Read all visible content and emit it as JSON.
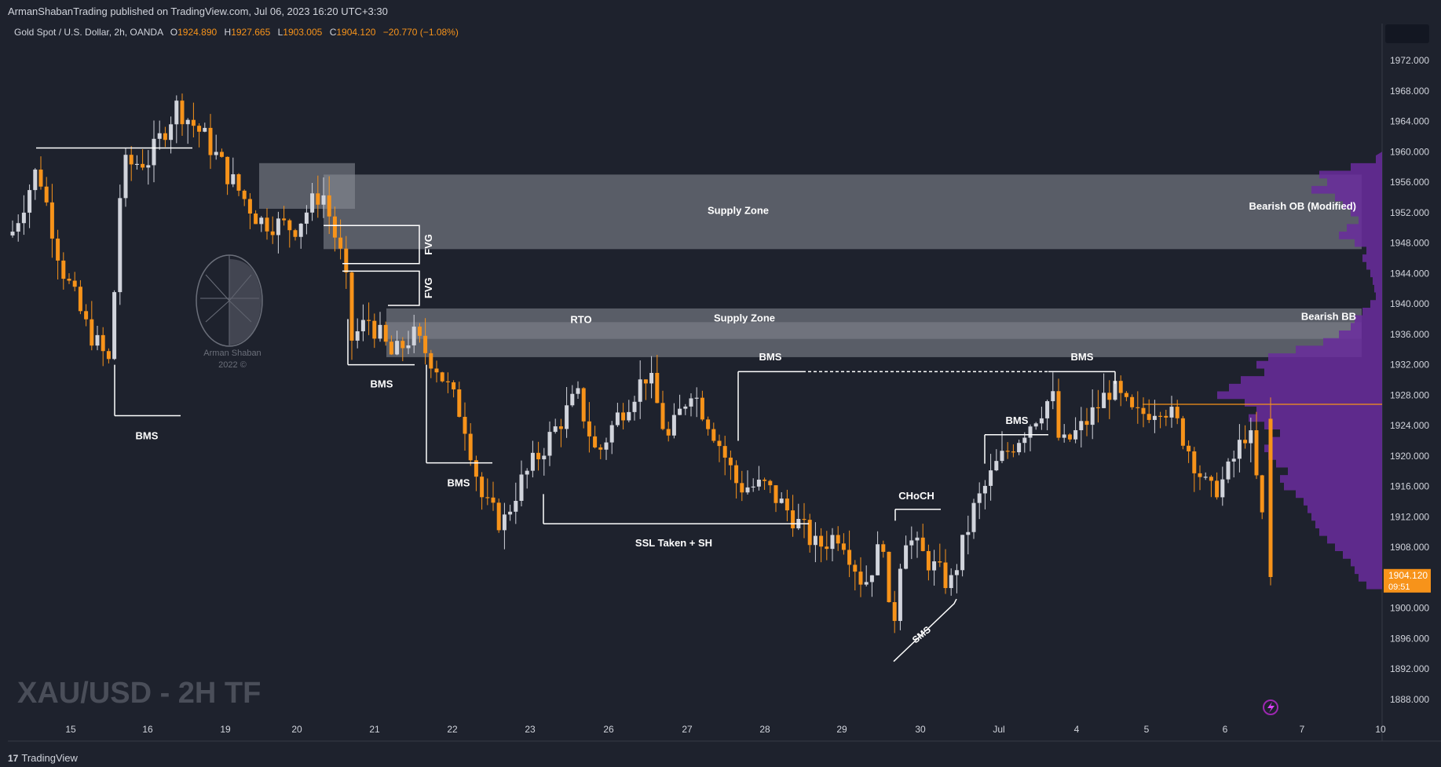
{
  "header": {
    "published": "ArmanShabanTrading published on TradingView.com, Jul 06, 2023 16:20 UTC+3:30",
    "symbol": "Gold Spot / U.S. Dollar, 2h, OANDA",
    "ohlc": [
      {
        "label": "O",
        "value": "1924.890"
      },
      {
        "label": "H",
        "value": "1927.665"
      },
      {
        "label": "L",
        "value": "1903.005"
      },
      {
        "label": "C",
        "value": "1904.120"
      }
    ],
    "change": "−20.770 (−1.08%)"
  },
  "footer": {
    "logo": "TradingView",
    "logo_mark": "17"
  },
  "watermark": {
    "title": "XAU/USD - 2H TF",
    "logo_name": "Arman Shaban",
    "logo_year": "2022 ©"
  },
  "price_label": {
    "price": "1904.120",
    "countdown": "09:51"
  },
  "colors": {
    "background": "#1e222d",
    "up": "#d1d4dc",
    "down": "#f7931a",
    "zone": "#8b8e98",
    "profile": "#6a2c9e",
    "price_line": "#f7931a",
    "annotation": "#ffffff"
  },
  "chart_data": {
    "type": "candlestick",
    "ylim": [
      1886,
      1976
    ],
    "y_ticks": [
      "1972.000",
      "1968.000",
      "1964.000",
      "1960.000",
      "1956.000",
      "1952.000",
      "1948.000",
      "1944.000",
      "1940.000",
      "1936.000",
      "1932.000",
      "1928.000",
      "1924.000",
      "1920.000",
      "1916.000",
      "1912.000",
      "1908.000",
      "1904.000",
      "1900.000",
      "1896.000",
      "1892.000",
      "1888.000"
    ],
    "x_ticks": [
      "15",
      "16",
      "19",
      "20",
      "21",
      "22",
      "23",
      "26",
      "27",
      "28",
      "29",
      "30",
      "Jul",
      "4",
      "5",
      "6",
      "7",
      "10"
    ],
    "last_price": 1904.12,
    "anchors": [
      {
        "x": "14 start",
        "price": 1949
      },
      {
        "x": "14 late",
        "price": 1958
      },
      {
        "x": "15 mid",
        "price": 1945
      },
      {
        "x": "15 late",
        "price": 1937
      },
      {
        "x": "15 end",
        "price": 1932
      },
      {
        "x": "16 start",
        "price": 1958
      },
      {
        "x": "16 mid",
        "price": 1959
      },
      {
        "x": "16 late",
        "price": 1966
      },
      {
        "x": "19 early",
        "price": 1962
      },
      {
        "x": "19 mid",
        "price": 1957
      },
      {
        "x": "20 start",
        "price": 1951
      },
      {
        "x": "20 mid",
        "price": 1950
      },
      {
        "x": "20 end",
        "price": 1955
      },
      {
        "x": "21 start",
        "price": 1944
      },
      {
        "x": "21 early",
        "price": 1935
      },
      {
        "x": "21 mid",
        "price": 1938
      },
      {
        "x": "21 late",
        "price": 1933
      },
      {
        "x": "22 early",
        "price": 1936
      },
      {
        "x": "22 mid",
        "price": 1932
      },
      {
        "x": "22 late",
        "price": 1925
      },
      {
        "x": "23 start",
        "price": 1914
      },
      {
        "x": "23 mid",
        "price": 1911
      },
      {
        "x": "23 late",
        "price": 1916
      },
      {
        "x": "26 start",
        "price": 1928
      },
      {
        "x": "26 early",
        "price": 1920
      },
      {
        "x": "26 mid",
        "price": 1925
      },
      {
        "x": "26 late",
        "price": 1931
      },
      {
        "x": "27 early",
        "price": 1922
      },
      {
        "x": "27 mid",
        "price": 1929
      },
      {
        "x": "27 late",
        "price": 1923
      },
      {
        "x": "28 start",
        "price": 1916
      },
      {
        "x": "28 mid",
        "price": 1916
      },
      {
        "x": "28 late",
        "price": 1912
      },
      {
        "x": "29 early",
        "price": 1908
      },
      {
        "x": "29 mid",
        "price": 1910
      },
      {
        "x": "29 late",
        "price": 1903
      },
      {
        "x": "30 start",
        "price": 1909
      },
      {
        "x": "30 early",
        "price": 1895
      },
      {
        "x": "30 mid",
        "price": 1910
      },
      {
        "x": "30 late",
        "price": 1907
      },
      {
        "x": "Jul early",
        "price": 1903
      },
      {
        "x": "Jul mid",
        "price": 1913
      },
      {
        "x": "Jul late",
        "price": 1919
      },
      {
        "x": "3 end",
        "price": 1928
      },
      {
        "x": "4 start",
        "price": 1921
      },
      {
        "x": "4 mid",
        "price": 1924
      },
      {
        "x": "4 late",
        "price": 1929
      },
      {
        "x": "5 start",
        "price": 1925
      },
      {
        "x": "5 mid",
        "price": 1927
      },
      {
        "x": "5 late",
        "price": 1924
      },
      {
        "x": "6 start",
        "price": 1915
      },
      {
        "x": "6 mid",
        "price": 1917
      },
      {
        "x": "6 late",
        "price": 1924
      },
      {
        "x": "6 end",
        "price": 1904.12
      }
    ],
    "zones": [
      {
        "label": "Supply Zone",
        "side_label": "Bearish OB (Modified)",
        "from": 1947,
        "to": 1956.6
      },
      {
        "label": "Supply Zone",
        "side_label": "Bearish BB",
        "from": 1933,
        "to": 1939.4
      }
    ],
    "annotations": [
      "BMS",
      "BMS",
      "BMS",
      "BMS",
      "BMS",
      "BMS",
      "FVG",
      "FVG",
      "RTO",
      "SSL Taken + SH",
      "CHoCH",
      "SMS"
    ]
  }
}
